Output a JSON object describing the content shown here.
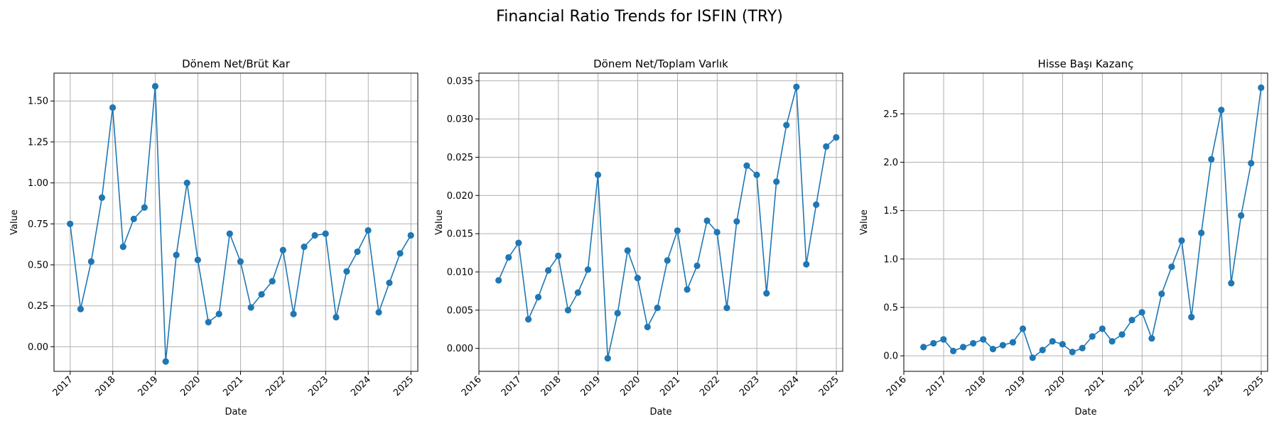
{
  "suptitle": "Financial Ratio Trends for ISFIN (TRY)",
  "chart_data": [
    {
      "type": "line",
      "title": "Dönem Net/Brüt Kar",
      "xlabel": "Date",
      "ylabel": "Value",
      "grid": true,
      "xlim": [
        "2016-08-15",
        "2025-03-01"
      ],
      "ylim": [
        -0.15,
        1.67
      ],
      "xticks": [
        "2017",
        "2018",
        "2019",
        "2020",
        "2021",
        "2022",
        "2023",
        "2024",
        "2025"
      ],
      "yticks": [
        "0.00",
        "0.25",
        "0.50",
        "0.75",
        "1.00",
        "1.25",
        "1.50"
      ],
      "series": [
        {
          "color": "#1f77b4",
          "x": [
            "2016-12-31",
            "2017-03-31",
            "2017-06-30",
            "2017-09-30",
            "2017-12-31",
            "2018-03-31",
            "2018-06-30",
            "2018-09-30",
            "2018-12-31",
            "2019-03-31",
            "2019-06-30",
            "2019-09-30",
            "2019-12-31",
            "2020-03-31",
            "2020-06-30",
            "2020-09-30",
            "2020-12-31",
            "2021-03-31",
            "2021-06-30",
            "2021-09-30",
            "2021-12-31",
            "2022-03-31",
            "2022-06-30",
            "2022-09-30",
            "2022-12-31",
            "2023-03-31",
            "2023-06-30",
            "2023-09-30",
            "2023-12-31",
            "2024-03-31",
            "2024-06-30",
            "2024-09-30",
            "2024-12-31"
          ],
          "y": [
            0.75,
            0.23,
            0.52,
            0.91,
            1.46,
            0.61,
            0.78,
            0.85,
            1.59,
            -0.09,
            0.56,
            1.0,
            0.53,
            0.15,
            0.2,
            0.69,
            0.52,
            0.24,
            0.32,
            0.4,
            0.59,
            0.2,
            0.61,
            0.68,
            0.69,
            0.18,
            0.46,
            0.58,
            0.71,
            0.21,
            0.39,
            0.57,
            0.68
          ]
        }
      ]
    },
    {
      "type": "line",
      "title": "Dönem Net/Toplam Varlık",
      "xlabel": "Date",
      "ylabel": "Value",
      "grid": true,
      "xlim": [
        "2016-01-01",
        "2025-03-01"
      ],
      "ylim": [
        -0.003,
        0.036
      ],
      "xticks": [
        "2016",
        "2017",
        "2018",
        "2019",
        "2020",
        "2021",
        "2022",
        "2023",
        "2024",
        "2025"
      ],
      "yticks": [
        "0.000",
        "0.005",
        "0.010",
        "0.015",
        "0.020",
        "0.025",
        "0.030",
        "0.035"
      ],
      "series": [
        {
          "color": "#1f77b4",
          "x": [
            "2016-06-30",
            "2016-09-30",
            "2016-12-31",
            "2017-03-31",
            "2017-06-30",
            "2017-09-30",
            "2017-12-31",
            "2018-03-31",
            "2018-06-30",
            "2018-09-30",
            "2018-12-31",
            "2019-03-31",
            "2019-06-30",
            "2019-09-30",
            "2019-12-31",
            "2020-03-31",
            "2020-06-30",
            "2020-09-30",
            "2020-12-31",
            "2021-03-31",
            "2021-06-30",
            "2021-09-30",
            "2021-12-31",
            "2022-03-31",
            "2022-06-30",
            "2022-09-30",
            "2022-12-31",
            "2023-03-31",
            "2023-06-30",
            "2023-09-30",
            "2023-12-31",
            "2024-03-31",
            "2024-06-30",
            "2024-09-30",
            "2024-12-31"
          ],
          "y": [
            0.0089,
            0.0119,
            0.0138,
            0.0038,
            0.0067,
            0.0102,
            0.0121,
            0.005,
            0.0073,
            0.0103,
            0.0227,
            -0.0013,
            0.0046,
            0.0128,
            0.0092,
            0.0028,
            0.0053,
            0.0115,
            0.0154,
            0.0077,
            0.0108,
            0.0167,
            0.0152,
            0.0053,
            0.0166,
            0.0239,
            0.0227,
            0.0072,
            0.0218,
            0.0292,
            0.0342,
            0.011,
            0.0188,
            0.0264,
            0.0276
          ]
        }
      ]
    },
    {
      "type": "line",
      "title": "Hisse Başı Kazanç",
      "xlabel": "Date",
      "ylabel": "Value",
      "grid": true,
      "xlim": [
        "2016-01-01",
        "2025-03-01"
      ],
      "ylim": [
        -0.16,
        2.92
      ],
      "xticks": [
        "2016",
        "2017",
        "2018",
        "2019",
        "2020",
        "2021",
        "2022",
        "2023",
        "2024",
        "2025"
      ],
      "yticks": [
        "0.0",
        "0.5",
        "1.0",
        "1.5",
        "2.0",
        "2.5"
      ],
      "series": [
        {
          "color": "#1f77b4",
          "x": [
            "2016-06-30",
            "2016-09-30",
            "2016-12-31",
            "2017-03-31",
            "2017-06-30",
            "2017-09-30",
            "2017-12-31",
            "2018-03-31",
            "2018-06-30",
            "2018-09-30",
            "2018-12-31",
            "2019-03-31",
            "2019-06-30",
            "2019-09-30",
            "2019-12-31",
            "2020-03-31",
            "2020-06-30",
            "2020-09-30",
            "2020-12-31",
            "2021-03-31",
            "2021-06-30",
            "2021-09-30",
            "2021-12-31",
            "2022-03-31",
            "2022-06-30",
            "2022-09-30",
            "2022-12-31",
            "2023-03-31",
            "2023-06-30",
            "2023-09-30",
            "2023-12-31",
            "2024-03-31",
            "2024-06-30",
            "2024-09-30",
            "2024-12-31"
          ],
          "y": [
            0.09,
            0.13,
            0.17,
            0.05,
            0.09,
            0.13,
            0.17,
            0.07,
            0.11,
            0.14,
            0.28,
            -0.02,
            0.06,
            0.15,
            0.12,
            0.04,
            0.08,
            0.2,
            0.28,
            0.15,
            0.22,
            0.37,
            0.45,
            0.18,
            0.64,
            0.92,
            1.19,
            0.4,
            1.27,
            2.03,
            2.54,
            0.75,
            1.45,
            1.99,
            2.77
          ]
        }
      ]
    }
  ]
}
